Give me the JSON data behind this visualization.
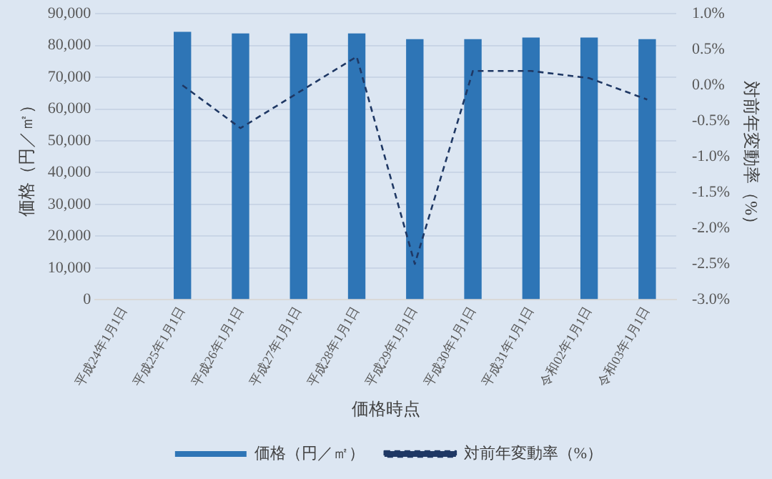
{
  "chart_data": {
    "type": "bar",
    "xlabel": "価格時点",
    "ylabel": "価格（円／㎡）",
    "y2label": "対前年変動率（%）",
    "categories": [
      "平成24年1月1日",
      "平成25年1月1日",
      "平成26年1月1日",
      "平成27年1月1日",
      "平成28年1月1日",
      "平成29年1月1日",
      "平成30年1月1日",
      "平成31年1月1日",
      "令和02年1月1日",
      "令和03年1月1日"
    ],
    "series": [
      {
        "name": "価格（円／㎡）",
        "color": "#2e75b6",
        "values": [
          null,
          84300,
          83800,
          83800,
          83800,
          82000,
          82000,
          82500,
          82500,
          82000
        ]
      },
      {
        "name": "対前年変動率（%）",
        "type": "line",
        "axis": "y2",
        "color": "#1f3864",
        "line_style": "dashed",
        "marker": "none",
        "values": [
          null,
          0.0,
          -0.6,
          -0.1,
          0.4,
          -2.5,
          0.2,
          0.2,
          0.1,
          -0.2
        ]
      }
    ],
    "ylim": [
      0,
      90000
    ],
    "yticks": [
      {
        "value": 0,
        "label": "0"
      },
      {
        "value": 10000,
        "label": "10,000"
      },
      {
        "value": 20000,
        "label": "20,000"
      },
      {
        "value": 30000,
        "label": "30,000"
      },
      {
        "value": 40000,
        "label": "40,000"
      },
      {
        "value": 50000,
        "label": "50,000"
      },
      {
        "value": 60000,
        "label": "60,000"
      },
      {
        "value": 70000,
        "label": "70,000"
      },
      {
        "value": 80000,
        "label": "80,000"
      },
      {
        "value": 90000,
        "label": "90,000"
      }
    ],
    "y2lim": [
      -3.0,
      1.0
    ],
    "y2ticks": [
      {
        "value": 1.0,
        "label": "1.0%"
      },
      {
        "value": 0.5,
        "label": "0.5%"
      },
      {
        "value": 0,
        "label": "0.0%"
      },
      {
        "value": -0.5,
        "label": "-0.5%"
      },
      {
        "value": -1.0,
        "label": "-1.0%"
      },
      {
        "value": -1.5,
        "label": "-1.5%"
      },
      {
        "value": -2.0,
        "label": "-2.0%"
      },
      {
        "value": -2.5,
        "label": "-2.5%"
      },
      {
        "value": -3.0,
        "label": "-3.0%"
      }
    ],
    "grid": "y",
    "legend": "bottom"
  }
}
